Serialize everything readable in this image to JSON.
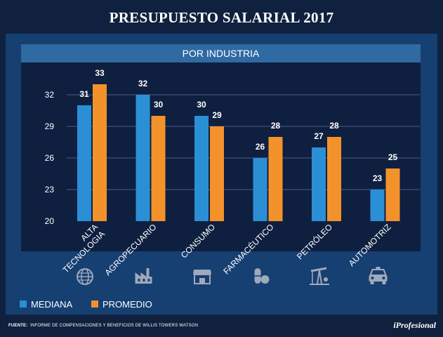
{
  "header": {
    "title": "PRESUPUESTO SALARIAL 2017"
  },
  "footer": {
    "source_label": "FUENTE:",
    "source_text": "INFORME DE COMPENSACIONES Y BENEFICIOS DE WILLIS TOWERS WATSON",
    "brand": "iProfesional"
  },
  "colors": {
    "mediana": "#2b8fd6",
    "promedio": "#f3922b",
    "background": "#10213f",
    "panel": "#163f72",
    "grid": "#4b5d80"
  },
  "icons": [
    "globe-icon",
    "factory-icon",
    "store-icon",
    "pills-icon",
    "oil-pump-icon",
    "taxi-icon"
  ],
  "chart_data": {
    "type": "bar",
    "title": "PRESUPUESTO SALARIAL 2017",
    "subtitle": "POR INDUSTRIA",
    "categories": [
      [
        "ALTA",
        "TECNOLOGIA"
      ],
      [
        "AGROPECUARIO"
      ],
      [
        "CONSUMO"
      ],
      [
        "FARMACÉUTICO"
      ],
      [
        "PETRÓLEO"
      ],
      [
        "AUTOMOTRIZ"
      ]
    ],
    "series": [
      {
        "name": "MEDIANA",
        "values": [
          31,
          32,
          30,
          26,
          27,
          23
        ]
      },
      {
        "name": "PROMEDIO",
        "values": [
          33,
          30,
          29,
          28,
          28,
          25
        ]
      }
    ],
    "yticks": [
      "20",
      "23",
      "26",
      "29",
      "32"
    ],
    "ylim": [
      20,
      33
    ],
    "grid": true,
    "legend": "bottom-left",
    "xlabel": "",
    "ylabel": ""
  }
}
